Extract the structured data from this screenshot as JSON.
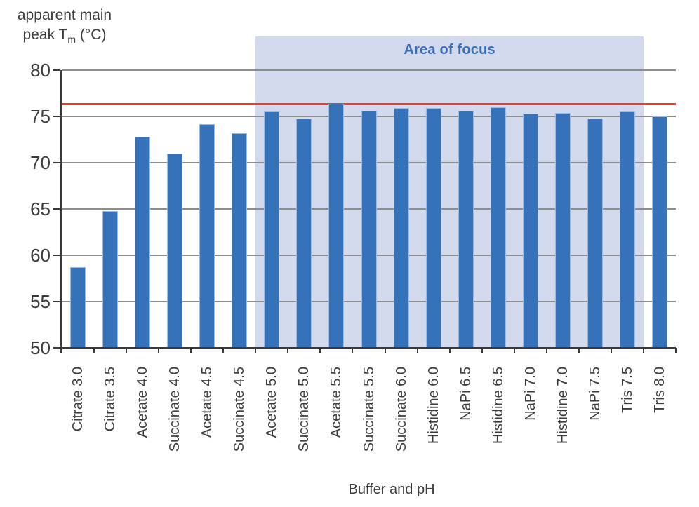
{
  "chart_data": {
    "type": "bar",
    "title": "",
    "ylabel": {
      "line1": "apparent main",
      "line2_pre": "peak T",
      "line2_sub": "m",
      "line2_post": " (°C)"
    },
    "xlabel": "Buffer and pH",
    "categories": [
      "Citrate 3.0",
      "Citrate 3.5",
      "Acetate 4.0",
      "Succinate 4.0",
      "Acetate 4.5",
      "Succinate 4.5",
      "Acetate 5.0",
      "Succinate 5.0",
      "Acetate 5.5",
      "Succinate 5.5",
      "Succinate 6.0",
      "Histidine 6.0",
      "NaPi 6.5",
      "Histidine 6.5",
      "NaPi 7.0",
      "Histidine 7.0",
      "NaPi 7.5",
      "Tris 7.5",
      "Tris 8.0"
    ],
    "values": [
      58.7,
      64.8,
      72.8,
      71.0,
      74.2,
      73.2,
      75.5,
      74.8,
      76.4,
      75.6,
      75.9,
      75.9,
      75.6,
      76.0,
      75.3,
      75.4,
      74.8,
      75.5,
      75.0
    ],
    "ylim": [
      50,
      80
    ],
    "yticks": [
      80,
      75,
      70,
      65,
      60,
      55,
      50
    ],
    "grid": "horizontal",
    "legend": "none",
    "reference_line": {
      "value": 76.3
    },
    "focus_region": {
      "label": "Area of focus",
      "start_index": 6,
      "end_index": 17,
      "start_category": "Acetate 5.0",
      "end_category": "Tris 7.5"
    },
    "colors": {
      "bar_fill": "#3572b9",
      "bar_border": "#9db9e0",
      "gridline": "#8e8e8e",
      "axis": "#3a3a3a",
      "reference_line": "#ef3b28",
      "focus_background": "#d4daee",
      "focus_text": "#3a6fb7",
      "text": "#3d3d3d"
    }
  }
}
